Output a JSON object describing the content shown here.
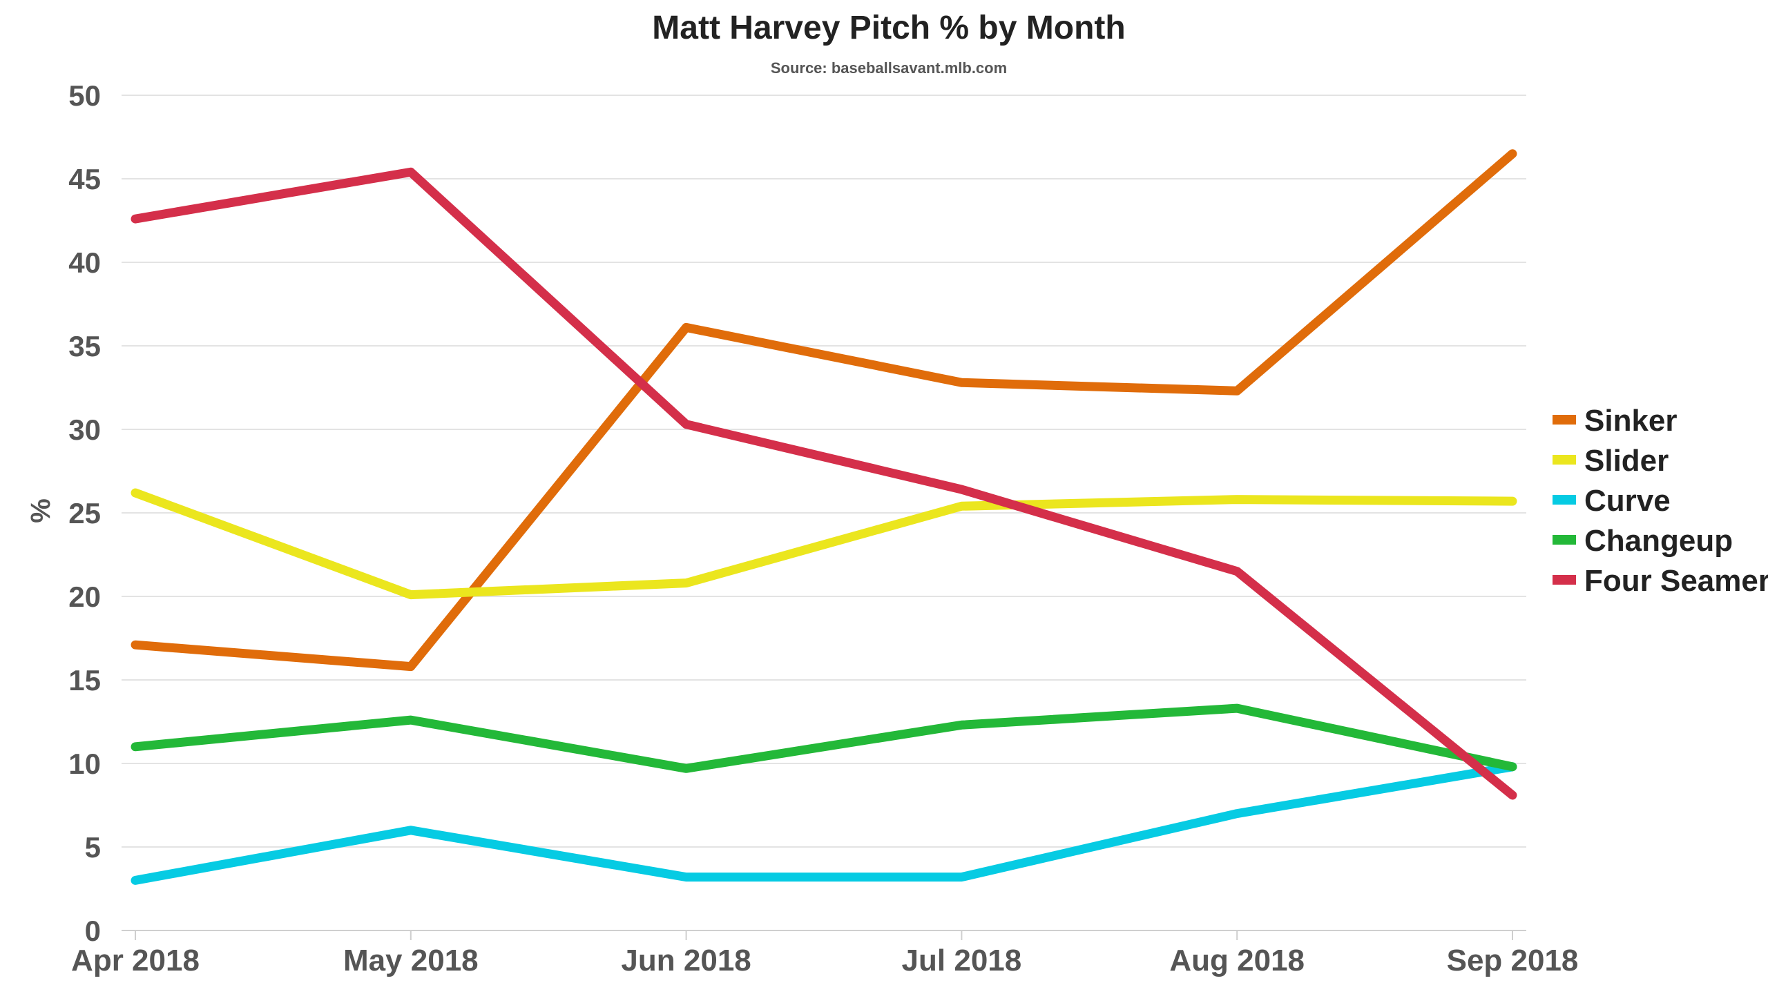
{
  "chart_data": {
    "type": "line",
    "title": "Matt Harvey Pitch % by Month",
    "subtitle": "Source: baseballsavant.mlb.com",
    "xlabel": "",
    "ylabel": "%",
    "ylim": [
      0,
      50
    ],
    "yticks": [
      0,
      5,
      10,
      15,
      20,
      25,
      30,
      35,
      40,
      45,
      50
    ],
    "categories": [
      "Apr 2018",
      "May 2018",
      "Jun 2018",
      "Jul 2018",
      "Aug 2018",
      "Sep 2018"
    ],
    "grid": true,
    "legend_position": "right",
    "series": [
      {
        "name": "Sinker",
        "color": "#e06c0a",
        "values": [
          17.1,
          15.8,
          36.1,
          32.8,
          32.3,
          46.5
        ]
      },
      {
        "name": "Slider",
        "color": "#ebe61e",
        "values": [
          26.2,
          20.1,
          20.8,
          25.4,
          25.8,
          25.7
        ]
      },
      {
        "name": "Curve",
        "color": "#06cbe3",
        "values": [
          3.0,
          6.0,
          3.2,
          3.2,
          7.0,
          9.8
        ]
      },
      {
        "name": "Changeup",
        "color": "#23b838",
        "values": [
          11.0,
          12.6,
          9.7,
          12.3,
          13.3,
          9.8
        ]
      },
      {
        "name": "Four Seamer",
        "color": "#d42f4a",
        "values": [
          42.6,
          45.4,
          30.3,
          26.4,
          21.5,
          8.1
        ]
      }
    ]
  }
}
